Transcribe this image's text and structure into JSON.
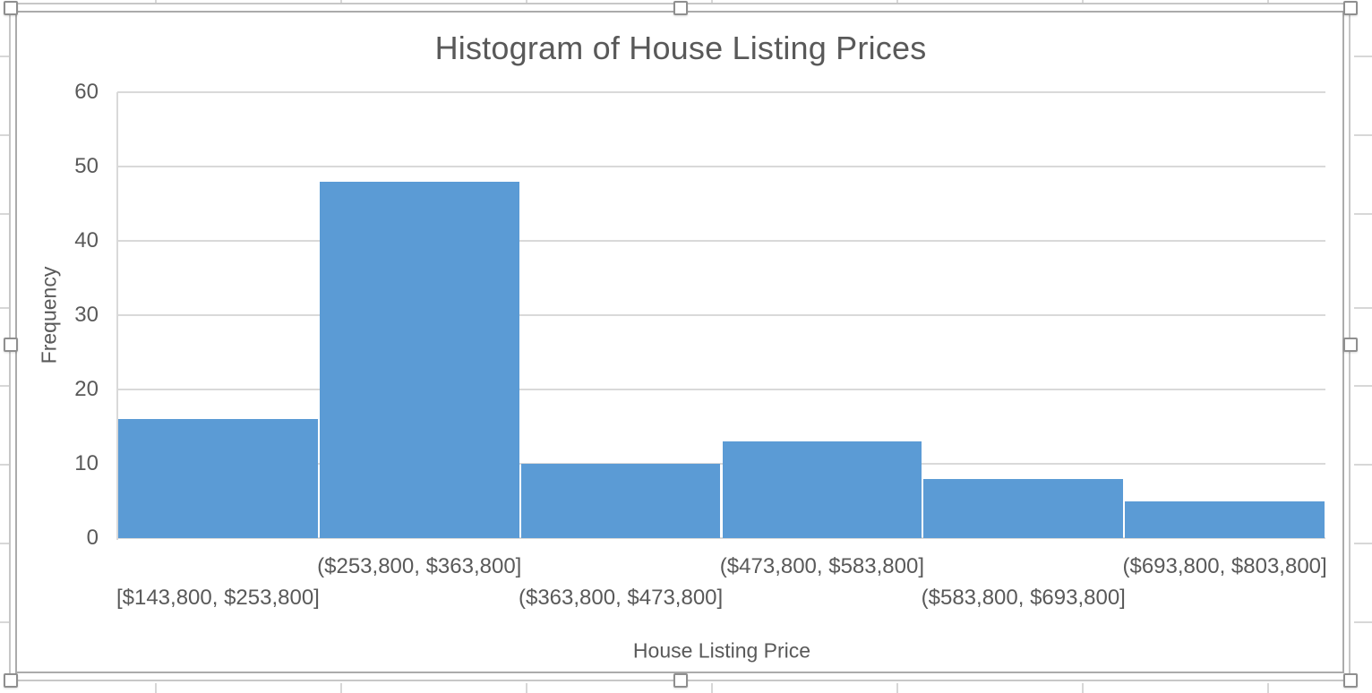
{
  "context": {
    "description": "Excel-style embedded chart object, selected (8 resize handles visible)"
  },
  "chart_data": {
    "type": "bar",
    "subtype": "histogram",
    "title": "Histogram of House Listing Prices",
    "xlabel": "House Listing Price",
    "ylabel": "Frequency",
    "categories": [
      "[$143,800, $253,800]",
      "($253,800, $363,800]",
      "($363,800, $473,800]",
      "($473,800, $583,800]",
      "($583,800, $693,800]",
      "($693,800, $803,800]"
    ],
    "values": [
      16,
      48,
      10,
      13,
      8,
      5
    ],
    "ylim": [
      0,
      60
    ],
    "yticks": [
      0,
      10,
      20,
      30,
      40,
      50,
      60
    ],
    "grid": "horizontal",
    "legend": "none",
    "bar_color": "#5b9bd5",
    "text_color": "#595959",
    "gridline_color": "#d9d9d9"
  },
  "selection": {
    "handles": [
      "nw",
      "n",
      "ne",
      "w",
      "e",
      "sw",
      "s",
      "se"
    ]
  }
}
